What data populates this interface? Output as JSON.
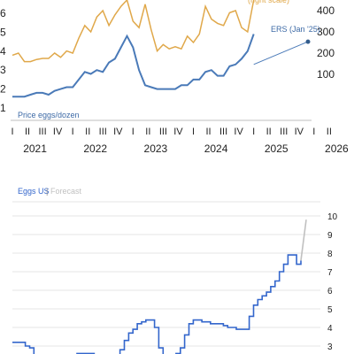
{
  "chart_data": [
    {
      "type": "line",
      "title": "",
      "annotations": {
        "series_label": "Price eggs/dozen",
        "forecast_label": "ERS (Jan '25)",
        "right_axis_label": "(right scale)"
      },
      "x_axis": {
        "quarter_labels": [
          "I",
          "II",
          "III",
          "IV",
          "I",
          "II",
          "III",
          "IV",
          "I",
          "II",
          "III",
          "IV",
          "I",
          "II",
          "III",
          "IV",
          "I",
          "II",
          "III",
          "IV",
          "I"
        ],
        "years": [
          "2021",
          "2022",
          "2023",
          "2024",
          "2025",
          "2026"
        ]
      },
      "left_axis": {
        "ticks": [
          "6",
          "5",
          "4",
          "3",
          "2",
          "1"
        ],
        "ylim": [
          1,
          6.4
        ]
      },
      "right_axis": {
        "ticks": [
          "400",
          "300",
          "200",
          "100"
        ],
        "ylim": [
          0,
          450
        ]
      },
      "series": [
        {
          "name": "Price eggs/dozen",
          "axis": "left",
          "color": "#4a7ab8",
          "x": [
            2021.0,
            2021.1,
            2021.2,
            2021.3,
            2021.4,
            2021.5,
            2021.6,
            2021.7,
            2021.8,
            2021.9,
            2022.0,
            2022.1,
            2022.2,
            2022.3,
            2022.4,
            2022.5,
            2022.6,
            2022.7,
            2022.8,
            2022.9,
            2023.0,
            2023.1,
            2023.2,
            2023.3,
            2023.4,
            2023.5,
            2023.6,
            2023.7,
            2023.8,
            2023.9,
            2024.0,
            2024.1,
            2024.2,
            2024.3,
            2024.4,
            2024.5,
            2024.6,
            2024.7,
            2024.8,
            2024.9,
            2025.0
          ],
          "values": [
            1.6,
            1.6,
            1.6,
            1.7,
            1.8,
            1.8,
            1.7,
            1.9,
            2.0,
            2.1,
            2.1,
            2.5,
            2.9,
            2.8,
            3.0,
            2.9,
            3.4,
            3.6,
            4.2,
            4.8,
            4.2,
            3.0,
            2.2,
            2.1,
            2.0,
            2.0,
            2.0,
            2.0,
            2.2,
            2.2,
            2.5,
            2.5,
            2.9,
            3.0,
            2.7,
            2.7,
            3.2,
            3.3,
            3.6,
            4.0,
            4.9
          ]
        },
        {
          "name": "",
          "axis": "right",
          "color": "#e0a84a",
          "x": [
            2021.0,
            2021.1,
            2021.2,
            2021.3,
            2021.4,
            2021.5,
            2021.6,
            2021.7,
            2021.8,
            2021.9,
            2022.0,
            2022.1,
            2022.2,
            2022.3,
            2022.4,
            2022.5,
            2022.6,
            2022.7,
            2022.8,
            2022.9,
            2023.0,
            2023.1,
            2023.2,
            2023.3,
            2023.4,
            2023.5,
            2023.6,
            2023.7,
            2023.8,
            2023.9,
            2024.0,
            2024.1,
            2024.2,
            2024.3,
            2024.4,
            2024.5,
            2024.6,
            2024.7,
            2024.8,
            2024.9,
            2025.0
          ],
          "values": [
            190,
            200,
            160,
            160,
            170,
            175,
            175,
            200,
            180,
            210,
            200,
            270,
            330,
            300,
            370,
            400,
            330,
            380,
            420,
            450,
            350,
            320,
            430,
            310,
            210,
            240,
            220,
            230,
            220,
            280,
            250,
            290,
            420,
            360,
            340,
            330,
            390,
            400,
            320,
            300,
            450
          ]
        },
        {
          "name": "",
          "axis": "left",
          "color": "#4a7ab8",
          "style": "forecast",
          "x": [
            2025.0,
            2025.9
          ],
          "values": [
            3.3,
            4.5
          ]
        }
      ]
    },
    {
      "type": "line",
      "title": "",
      "legend": [
        {
          "name": "Eggs US",
          "color": "#3366cc"
        },
        {
          "name": "Forecast",
          "color": "#c0c0c0"
        }
      ],
      "y_axis": {
        "ticks": [
          "10",
          "9",
          "8",
          "7",
          "6",
          "5",
          "4",
          "3"
        ],
        "ylim": [
          2.3,
          10.5
        ]
      },
      "series": [
        {
          "name": "Eggs US",
          "color": "#3366cc",
          "values": [
            3.2,
            3.2,
            3.2,
            3.0,
            2.9,
            2.5,
            2.4,
            2.3,
            2.3,
            2.3,
            2.3,
            2.3,
            2.3,
            2.3,
            2.3,
            2.6,
            2.6,
            2.6,
            2.6,
            2.3,
            2.3,
            2.3,
            2.3,
            2.3,
            2.5,
            2.8,
            3.3,
            3.7,
            3.9,
            4.2,
            4.3,
            4.4,
            4.4,
            4.0,
            2.9,
            2.3,
            2.3,
            2.3,
            2.6,
            2.9,
            3.6,
            4.2,
            4.4,
            4.4,
            4.3,
            4.3,
            4.2,
            4.2,
            4.2,
            4.1,
            4.0,
            4.0,
            3.9,
            3.9,
            3.9,
            4.6,
            5.2,
            5.5,
            5.7,
            5.9,
            6.2,
            6.5,
            7.0,
            7.4,
            7.9,
            7.9,
            7.4,
            7.6
          ]
        },
        {
          "name": "Forecast",
          "color": "#c0c0c0",
          "values": [
            7.6,
            9.8
          ]
        }
      ]
    }
  ]
}
